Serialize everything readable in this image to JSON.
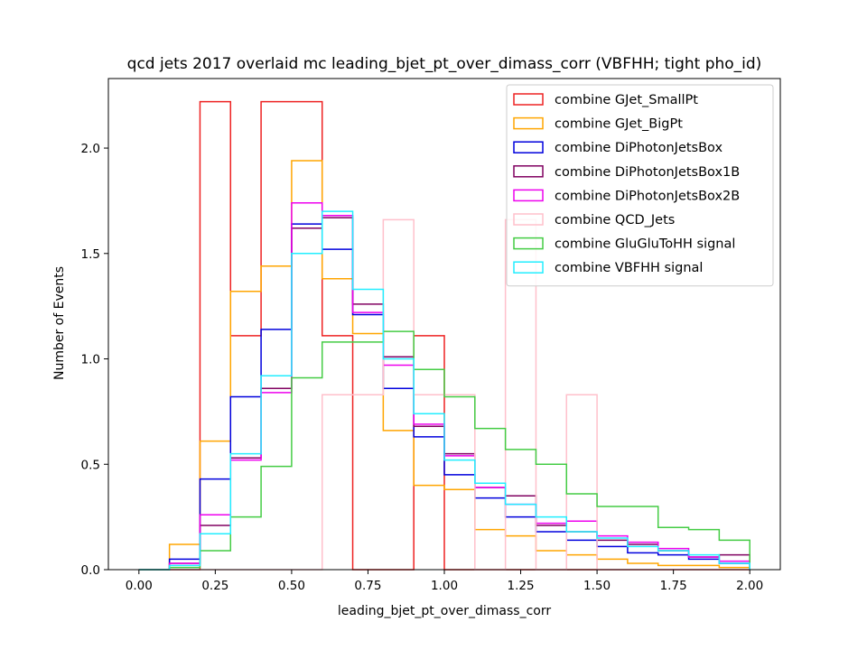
{
  "chart_data": {
    "type": "histogram-step",
    "title": "qcd jets 2017 overlaid mc leading_bjet_pt_over_dimass_corr (VBFHH; tight pho_id)",
    "xlabel": "leading_bjet_pt_over_dimass_corr",
    "ylabel": "Number of Events",
    "xlim": [
      -0.1,
      2.1
    ],
    "ylim": [
      0,
      2.33
    ],
    "xticks": [
      "0.00",
      "0.25",
      "0.50",
      "0.75",
      "1.00",
      "1.25",
      "1.50",
      "1.75",
      "2.00"
    ],
    "yticks": [
      "0.0",
      "0.5",
      "1.0",
      "1.5",
      "2.0"
    ],
    "bin_edges": [
      0.0,
      0.1,
      0.2,
      0.3,
      0.4,
      0.5,
      0.6,
      0.7,
      0.8,
      0.9,
      1.0,
      1.1,
      1.2,
      1.3,
      1.4,
      1.5,
      1.6,
      1.7,
      1.8,
      1.9,
      2.0
    ],
    "legend_position": "top-right",
    "series": [
      {
        "name": "combine GJet_SmallPt",
        "color": "#ee2222",
        "values": [
          0,
          0,
          2.22,
          1.11,
          2.22,
          2.22,
          1.11,
          0,
          0,
          1.11,
          0,
          0,
          0,
          0,
          0,
          0,
          0,
          0,
          0,
          0
        ]
      },
      {
        "name": "combine GJet_BigPt",
        "color": "#ffa500",
        "values": [
          0,
          0.12,
          0.61,
          1.32,
          1.44,
          1.94,
          1.38,
          1.12,
          0.66,
          0.4,
          0.38,
          0.19,
          0.16,
          0.09,
          0.07,
          0.05,
          0.03,
          0.02,
          0.02,
          0.01
        ]
      },
      {
        "name": "combine DiPhotonJetsBox",
        "color": "#0000dd",
        "values": [
          0,
          0.05,
          0.43,
          0.82,
          1.14,
          1.64,
          1.52,
          1.21,
          0.86,
          0.63,
          0.45,
          0.34,
          0.25,
          0.18,
          0.14,
          0.11,
          0.08,
          0.07,
          0.05,
          0.03
        ]
      },
      {
        "name": "combine DiPhotonJetsBox1B",
        "color": "#800060",
        "values": [
          0,
          0.03,
          0.21,
          0.53,
          0.86,
          1.62,
          1.67,
          1.26,
          1.01,
          0.68,
          0.55,
          0.39,
          0.35,
          0.21,
          0.18,
          0.14,
          0.12,
          0.09,
          0.06,
          0.07
        ]
      },
      {
        "name": "combine DiPhotonJetsBox2B",
        "color": "#ee00ee",
        "values": [
          0,
          0.03,
          0.26,
          0.52,
          0.84,
          1.74,
          1.68,
          1.22,
          0.97,
          0.69,
          0.54,
          0.39,
          0.31,
          0.22,
          0.23,
          0.16,
          0.13,
          0.1,
          0.06,
          0.04
        ]
      },
      {
        "name": "combine QCD_Jets",
        "color": "#ffc0cb",
        "values": [
          0,
          0,
          0,
          0,
          0,
          0,
          0.83,
          0.83,
          1.66,
          0.83,
          0.83,
          0,
          1.66,
          0,
          0.83,
          0,
          0,
          0,
          0,
          0
        ]
      },
      {
        "name": "combine GluGluToHH signal",
        "color": "#44cc44",
        "values": [
          0,
          0.01,
          0.09,
          0.25,
          0.49,
          0.91,
          1.08,
          1.08,
          1.13,
          0.95,
          0.82,
          0.67,
          0.57,
          0.5,
          0.36,
          0.3,
          0.3,
          0.2,
          0.19,
          0.14
        ]
      },
      {
        "name": "combine VBFHH signal",
        "color": "#22eeff",
        "values": [
          0,
          0.02,
          0.17,
          0.55,
          0.92,
          1.5,
          1.7,
          1.33,
          1.0,
          0.74,
          0.52,
          0.41,
          0.31,
          0.25,
          0.18,
          0.15,
          0.11,
          0.09,
          0.07,
          0.03
        ]
      }
    ]
  }
}
